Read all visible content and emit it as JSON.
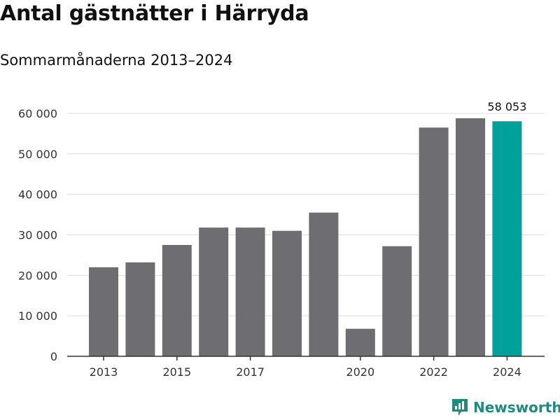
{
  "header": {
    "title": "Antal gästnätter i Härryda",
    "subtitle": "Sommarmånaderna 2013–2024"
  },
  "chart_data": {
    "type": "bar",
    "title": "Antal gästnätter i Härryda",
    "subtitle": "Sommarmånaderna 2013–2024",
    "xlabel": "",
    "ylabel": "",
    "categories": [
      "2013",
      "2014",
      "2015",
      "2016",
      "2017",
      "2018",
      "2019",
      "2020",
      "2021",
      "2022",
      "2023",
      "2024"
    ],
    "values": [
      22000,
      23200,
      27500,
      31800,
      31800,
      31000,
      35500,
      6800,
      27200,
      56500,
      58800,
      58053
    ],
    "x_tick_labels": [
      "2013",
      "2015",
      "2017",
      "2020",
      "2022",
      "2024"
    ],
    "y_ticks": [
      0,
      10000,
      20000,
      30000,
      40000,
      50000,
      60000
    ],
    "y_tick_labels": [
      "0",
      "10 000",
      "20 000",
      "30 000",
      "40 000",
      "50 000",
      "60 000"
    ],
    "ylim": [
      0,
      60000
    ],
    "grid": true,
    "annotation": {
      "category": "2024",
      "text": "58 053"
    },
    "colors": {
      "bar": "#6e6d72",
      "highlight": "#00a19a",
      "grid": "#dcdcdc",
      "axis": "#333333"
    },
    "highlight_category": "2024"
  },
  "brand": {
    "name": "Newsworthy",
    "icon": "newsworthy-logo-icon",
    "color": "#1f8a80"
  }
}
